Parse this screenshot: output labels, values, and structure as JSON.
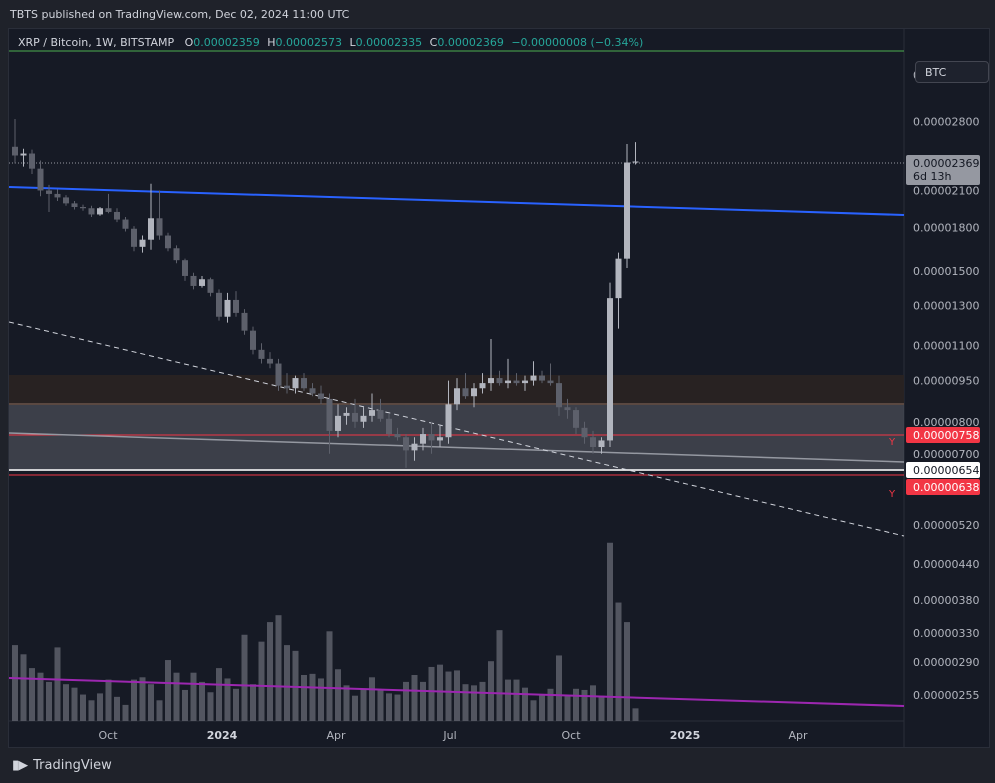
{
  "header": {
    "published": "TBTS published on TradingView.com, Dec 02, 2024 11:00 UTC"
  },
  "legend": {
    "symbol": "XRP / Bitcoin, 1W, BITSTAMP",
    "open_label": "O",
    "open": "0.00002359",
    "high_label": "H",
    "high": "0.00002573",
    "low_label": "L",
    "low": "0.00002335",
    "close_label": "C",
    "close": "0.00002369",
    "change": "−0.00000008 (−0.34%)"
  },
  "currency_button": "BTC",
  "footer": {
    "brand": "TradingView"
  },
  "colors": {
    "background": "#161a25",
    "candle": "#b2b5be",
    "candle_down": "#5d606b",
    "trendline": "#2962ff",
    "volume_trend": "#9c27b0",
    "support_line": "#f23645",
    "current_price_bg": "#ffffff",
    "zone_upper": "#3a2e2a",
    "zone_lower": "#5a5d66"
  },
  "chart_data": {
    "type": "candlestick",
    "y_scale": "log",
    "ylim": [
      4.8e-06,
      4.2e-06
    ],
    "y_ticks": [
      "0.00003400",
      "0.00002800",
      "0.00002100",
      "0.00001800",
      "0.00001500",
      "0.00001300",
      "0.00001100",
      "0.00000950",
      "0.00000800",
      "0.00000700",
      "0.00000520"
    ],
    "volume_ticks": [
      "0.00000440",
      "0.00000380",
      "0.00000330",
      "0.00000290",
      "0.00000255"
    ],
    "x_ticks": [
      "Oct",
      "2024",
      "Apr",
      "Jul",
      "Oct",
      "2025",
      "Apr"
    ],
    "x_tick_bold": [
      false,
      true,
      false,
      false,
      false,
      true,
      false
    ],
    "price_labels": [
      {
        "value": "0.00002369",
        "sub": "6d 13h",
        "type": "current"
      },
      {
        "value": "0.00000758",
        "type": "red",
        "tag": "Y"
      },
      {
        "value": "0.00000654",
        "type": "white"
      },
      {
        "value": "0.00000638",
        "type": "red",
        "tag": "Y"
      }
    ],
    "candles": [
      [
        2.52e-05,
        2.83e-05,
        2.35e-05,
        2.43e-05
      ],
      [
        2.43e-05,
        2.5e-05,
        2.32e-05,
        2.45e-05
      ],
      [
        2.45e-05,
        2.49e-05,
        2.25e-05,
        2.3e-05
      ],
      [
        2.3e-05,
        2.38e-05,
        2.05e-05,
        2.1e-05
      ],
      [
        2.1e-05,
        2.15e-05,
        1.92e-05,
        2.07e-05
      ],
      [
        2.07e-05,
        2.11e-05,
        2.01e-05,
        2.04e-05
      ],
      [
        2.04e-05,
        2.06e-05,
        1.97e-05,
        1.99e-05
      ],
      [
        1.99e-05,
        2.01e-05,
        1.94e-05,
        1.96e-05
      ],
      [
        1.96e-05,
        1.98e-05,
        1.93e-05,
        1.95e-05
      ],
      [
        1.95e-05,
        1.97e-05,
        1.88e-05,
        1.9e-05
      ],
      [
        1.9e-05,
        1.96e-05,
        1.89e-05,
        1.95e-05
      ],
      [
        1.95e-05,
        2.07e-05,
        1.91e-05,
        1.92e-05
      ],
      [
        1.92e-05,
        1.95e-05,
        1.84e-05,
        1.86e-05
      ],
      [
        1.86e-05,
        1.88e-05,
        1.77e-05,
        1.79e-05
      ],
      [
        1.79e-05,
        1.81e-05,
        1.63e-05,
        1.66e-05
      ],
      [
        1.66e-05,
        1.74e-05,
        1.62e-05,
        1.71e-05
      ],
      [
        1.71e-05,
        2.16e-05,
        1.64e-05,
        1.87e-05
      ],
      [
        1.87e-05,
        2.1e-05,
        1.71e-05,
        1.74e-05
      ],
      [
        1.74e-05,
        1.76e-05,
        1.63e-05,
        1.65e-05
      ],
      [
        1.65e-05,
        1.67e-05,
        1.55e-05,
        1.57e-05
      ],
      [
        1.57e-05,
        1.58e-05,
        1.44e-05,
        1.47e-05
      ],
      [
        1.47e-05,
        1.49e-05,
        1.39e-05,
        1.41e-05
      ],
      [
        1.41e-05,
        1.47e-05,
        1.4e-05,
        1.45e-05
      ],
      [
        1.45e-05,
        1.46e-05,
        1.35e-05,
        1.37e-05
      ],
      [
        1.37e-05,
        1.39e-05,
        1.22e-05,
        1.24e-05
      ],
      [
        1.24e-05,
        1.37e-05,
        1.21e-05,
        1.33e-05
      ],
      [
        1.33e-05,
        1.38e-05,
        1.24e-05,
        1.26e-05
      ],
      [
        1.26e-05,
        1.28e-05,
        1.15e-05,
        1.17e-05
      ],
      [
        1.17e-05,
        1.19e-05,
        1.06e-05,
        1.08e-05
      ],
      [
        1.08e-05,
        1.11e-05,
        1.02e-05,
        1.04e-05
      ],
      [
        1.04e-05,
        1.07e-05,
        1e-05,
        1.02e-05
      ],
      [
        1.02e-05,
        1.04e-05,
        9.1e-06,
        9.3e-06
      ],
      [
        9.3e-06,
        9.8e-06,
        9e-06,
        9.2e-06
      ],
      [
        9.2e-06,
        9.7e-06,
        9e-06,
        9.6e-06
      ],
      [
        9.6e-06,
        9.8e-06,
        9.1e-06,
        9.2e-06
      ],
      [
        9.2e-06,
        9.4e-06,
        8.9e-06,
        9e-06
      ],
      [
        9e-06,
        9.3e-06,
        8.6e-06,
        8.8e-06
      ],
      [
        8.8e-06,
        9e-06,
        7e-06,
        7.7e-06
      ],
      [
        7.7e-06,
        8.6e-06,
        7.5e-06,
        8.2e-06
      ],
      [
        8.2e-06,
        8.5e-06,
        7.9e-06,
        8.3e-06
      ],
      [
        8.3e-06,
        8.8e-06,
        7.8e-06,
        8e-06
      ],
      [
        8e-06,
        8.5e-06,
        7.8e-06,
        8.2e-06
      ],
      [
        8.2e-06,
        9e-06,
        8e-06,
        8.4e-06
      ],
      [
        8.4e-06,
        8.8e-06,
        8e-06,
        8.1e-06
      ],
      [
        8.1e-06,
        8.3e-06,
        7.5e-06,
        7.6e-06
      ],
      [
        7.6e-06,
        7.8e-06,
        7.4e-06,
        7.5e-06
      ],
      [
        7.5e-06,
        7.6e-06,
        6.6e-06,
        7.1e-06
      ],
      [
        7.1e-06,
        7.5e-06,
        6.8e-06,
        7.3e-06
      ],
      [
        7.3e-06,
        7.8e-06,
        7.1e-06,
        7.6e-06
      ],
      [
        7.6e-06,
        8e-06,
        7e-06,
        7.4e-06
      ],
      [
        7.4e-06,
        7.9e-06,
        7.2e-06,
        7.5e-06
      ],
      [
        7.5e-06,
        9.5e-06,
        7.3e-06,
        8.6e-06
      ],
      [
        8.6e-06,
        9.6e-06,
        8.4e-06,
        9.2e-06
      ],
      [
        9.2e-06,
        9.8e-06,
        8.8e-06,
        8.9e-06
      ],
      [
        8.9e-06,
        9.4e-06,
        8.5e-06,
        9.2e-06
      ],
      [
        9.2e-06,
        9.8e-06,
        9e-06,
        9.4e-06
      ],
      [
        9.4e-06,
        1.13e-05,
        9.1e-06,
        9.6e-06
      ],
      [
        9.6e-06,
        9.9e-06,
        9.3e-06,
        9.4e-06
      ],
      [
        9.4e-06,
        1.04e-05,
        9.2e-06,
        9.5e-06
      ],
      [
        9.5e-06,
        9.8e-06,
        9.3e-06,
        9.4e-06
      ],
      [
        9.4e-06,
        9.7e-06,
        9.1e-06,
        9.5e-06
      ],
      [
        9.5e-06,
        1.03e-05,
        9.3e-06,
        9.7e-06
      ],
      [
        9.7e-06,
        9.9e-06,
        9.4e-06,
        9.5e-06
      ],
      [
        9.5e-06,
        1.02e-05,
        9.3e-06,
        9.4e-06
      ],
      [
        9.4e-06,
        9.7e-06,
        8.2e-06,
        8.5e-06
      ],
      [
        8.5e-06,
        8.8e-06,
        8.1e-06,
        8.4e-06
      ],
      [
        8.4e-06,
        8.5e-06,
        7.6e-06,
        7.8e-06
      ],
      [
        7.8e-06,
        8e-06,
        7.3e-06,
        7.5e-06
      ],
      [
        7.5e-06,
        7.7e-06,
        7e-06,
        7.2e-06
      ],
      [
        7.2e-06,
        7.5e-06,
        7e-06,
        7.4e-06
      ],
      [
        7.4e-06,
        1.43e-05,
        7.2e-06,
        1.34e-05
      ],
      [
        1.34e-05,
        1.62e-05,
        1.18e-05,
        1.58e-05
      ],
      [
        1.58e-05,
        2.55e-05,
        1.52e-05,
        2.36e-05
      ],
      [
        2.36e-05,
        2.57e-05,
        2.34e-05,
        2.37e-05
      ]
    ],
    "volume": [
      6.6,
      5.8,
      4.6,
      4.2,
      3.4,
      6.4,
      3.2,
      2.9,
      2.3,
      1.8,
      2.4,
      3.6,
      2.1,
      1.4,
      3.6,
      3.8,
      3.2,
      1.8,
      5.3,
      4.2,
      2.7,
      4.2,
      3.4,
      2.5,
      4.6,
      3.7,
      2.8,
      7.5,
      3.2,
      6.9,
      8.6,
      9.2,
      6.6,
      6.1,
      4.0,
      4.1,
      3.7,
      7.8,
      4.5,
      3.1,
      2.2,
      2.8,
      3.8,
      2.7,
      2.4,
      2.3,
      3.4,
      4.0,
      3.4,
      4.7,
      4.9,
      4.3,
      4.4,
      3.2,
      3.1,
      3.4,
      5.2,
      7.9,
      3.6,
      3.6,
      2.9,
      1.8,
      2.3,
      2.8,
      5.7,
      2.2,
      2.8,
      2.7,
      3.1,
      2.2,
      15.5,
      10.3,
      8.6,
      1.1
    ]
  }
}
